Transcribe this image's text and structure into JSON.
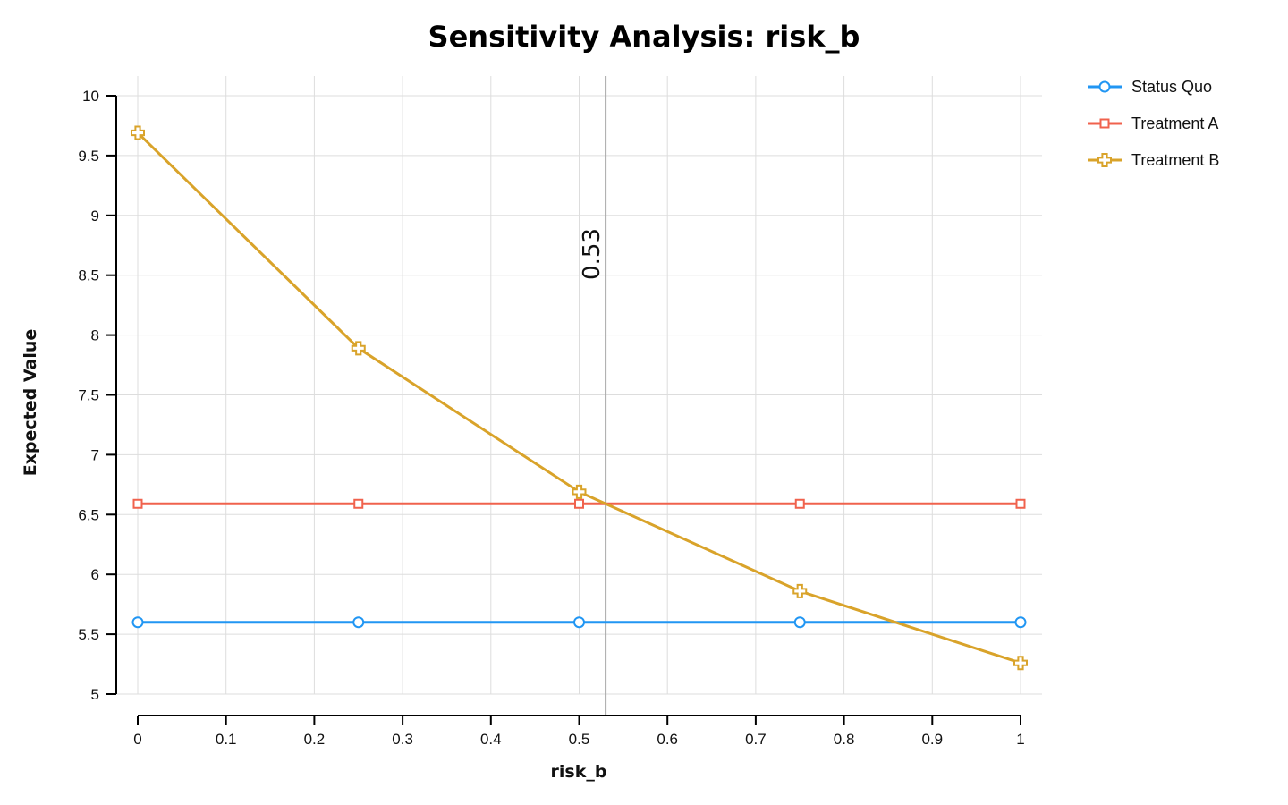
{
  "chart_data": {
    "type": "line",
    "title": "Sensitivity Analysis: risk_b",
    "xlabel": "risk_b",
    "ylabel": "Expected Value",
    "xlim": [
      0,
      1
    ],
    "ylim": [
      5,
      10
    ],
    "xticks": [
      "0",
      "0.1",
      "0.2",
      "0.3",
      "0.4",
      "0.5",
      "0.6",
      "0.7",
      "0.8",
      "0.9",
      "1"
    ],
    "yticks": [
      "5",
      "5.5",
      "6",
      "6.5",
      "7",
      "7.5",
      "8",
      "8.5",
      "9",
      "9.5",
      "10"
    ],
    "grid": true,
    "legend_position": "top-right, outside plot",
    "x": [
      0,
      0.25,
      0.5,
      0.75,
      1
    ],
    "series": [
      {
        "name": "Status Quo",
        "color": "#2196f3",
        "marker": "circle",
        "values": [
          5.6,
          5.6,
          5.6,
          5.6,
          5.6
        ]
      },
      {
        "name": "Treatment A",
        "color": "#f0624d",
        "marker": "square",
        "values": [
          6.59,
          6.59,
          6.59,
          6.59,
          6.59
        ]
      },
      {
        "name": "Treatment B",
        "color": "#d9a32a",
        "marker": "cross",
        "values": [
          9.69,
          7.89,
          6.69,
          5.86,
          5.26
        ]
      }
    ],
    "threshold": {
      "x": 0.53,
      "label": "0.53",
      "color": "#a9a9a9"
    }
  }
}
